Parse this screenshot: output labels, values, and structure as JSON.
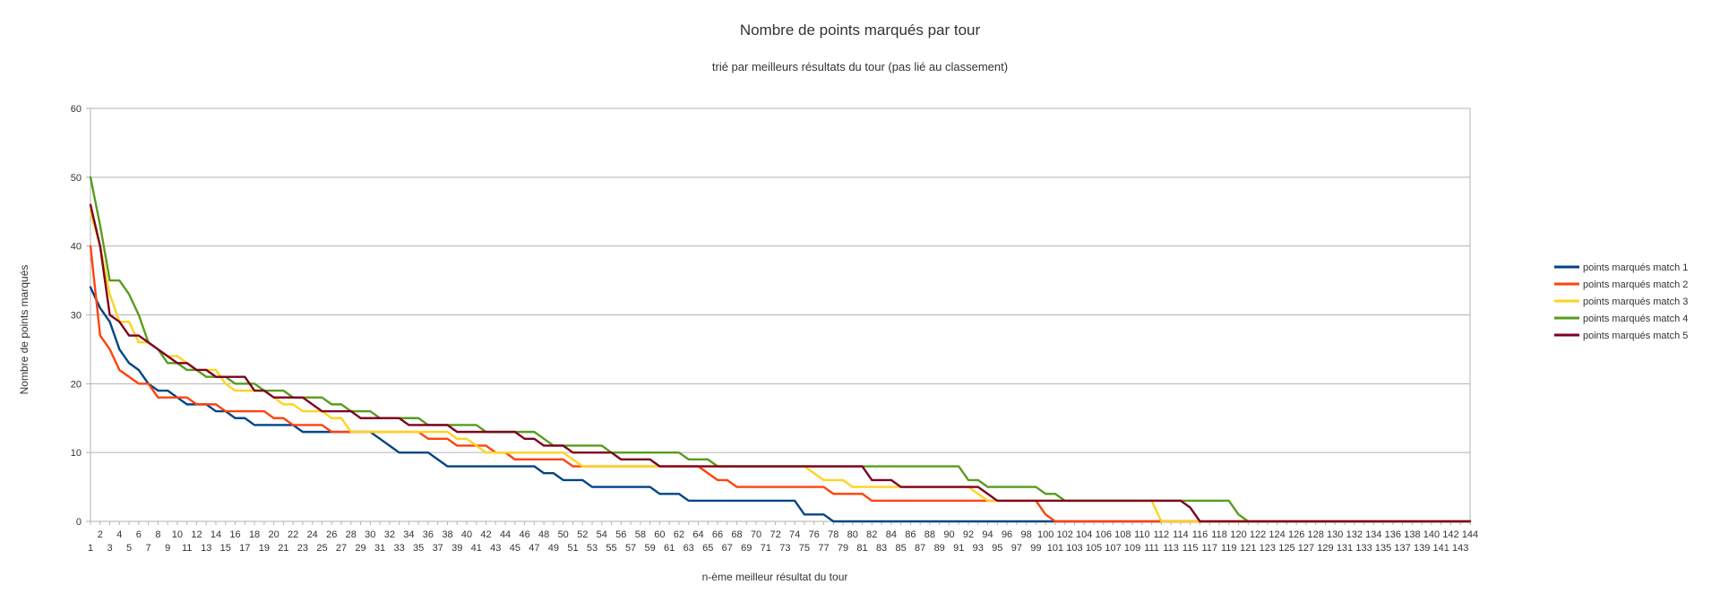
{
  "chart_data": {
    "type": "line",
    "title": "Nombre de points marqués par tour",
    "subtitle": "trié par meilleurs résultats du tour (pas lié au classement)",
    "xlabel": "n-ème meilleur résultat du tour",
    "ylabel": "Nombre de points marqués",
    "ylim": [
      0,
      60
    ],
    "yticks": [
      0,
      10,
      20,
      30,
      40,
      50,
      60
    ],
    "xlim": [
      1,
      144
    ],
    "x_tick_step": 1,
    "grid": "horizontal",
    "legend": "right",
    "series": [
      {
        "name": "points marqués match 1",
        "color": "#004586",
        "points": [
          [
            1,
            34
          ],
          [
            2,
            31
          ],
          [
            3,
            29
          ],
          [
            4,
            25
          ],
          [
            5,
            23
          ],
          [
            6,
            22
          ],
          [
            7,
            20
          ],
          [
            8,
            19
          ],
          [
            9,
            19
          ],
          [
            10,
            18
          ],
          [
            11,
            17
          ],
          [
            12,
            17
          ],
          [
            13,
            17
          ],
          [
            14,
            16
          ],
          [
            15,
            16
          ],
          [
            16,
            15
          ],
          [
            17,
            15
          ],
          [
            18,
            14
          ],
          [
            19,
            14
          ],
          [
            20,
            14
          ],
          [
            21,
            14
          ],
          [
            22,
            14
          ],
          [
            23,
            13
          ],
          [
            24,
            13
          ],
          [
            25,
            13
          ],
          [
            26,
            13
          ],
          [
            27,
            13
          ],
          [
            28,
            13
          ],
          [
            29,
            13
          ],
          [
            30,
            13
          ],
          [
            31,
            12
          ],
          [
            32,
            11
          ],
          [
            33,
            10
          ],
          [
            34,
            10
          ],
          [
            35,
            10
          ],
          [
            36,
            10
          ],
          [
            37,
            9
          ],
          [
            38,
            8
          ],
          [
            39,
            8
          ],
          [
            40,
            8
          ],
          [
            47,
            8
          ],
          [
            48,
            7
          ],
          [
            49,
            7
          ],
          [
            50,
            6
          ],
          [
            51,
            6
          ],
          [
            52,
            6
          ],
          [
            53,
            5
          ],
          [
            54,
            5
          ],
          [
            59,
            5
          ],
          [
            60,
            4
          ],
          [
            61,
            4
          ],
          [
            62,
            4
          ],
          [
            63,
            3
          ],
          [
            74,
            3
          ],
          [
            75,
            1
          ],
          [
            76,
            1
          ],
          [
            77,
            1
          ],
          [
            78,
            0
          ],
          [
            144,
            0
          ]
        ]
      },
      {
        "name": "points marqués match 2",
        "color": "#ff420e",
        "points": [
          [
            1,
            40
          ],
          [
            2,
            27
          ],
          [
            3,
            25
          ],
          [
            4,
            22
          ],
          [
            5,
            21
          ],
          [
            6,
            20
          ],
          [
            7,
            20
          ],
          [
            8,
            18
          ],
          [
            9,
            18
          ],
          [
            10,
            18
          ],
          [
            11,
            18
          ],
          [
            12,
            17
          ],
          [
            13,
            17
          ],
          [
            14,
            17
          ],
          [
            15,
            16
          ],
          [
            16,
            16
          ],
          [
            19,
            16
          ],
          [
            20,
            15
          ],
          [
            21,
            15
          ],
          [
            22,
            14
          ],
          [
            23,
            14
          ],
          [
            25,
            14
          ],
          [
            26,
            13
          ],
          [
            35,
            13
          ],
          [
            36,
            12
          ],
          [
            37,
            12
          ],
          [
            38,
            12
          ],
          [
            39,
            11
          ],
          [
            40,
            11
          ],
          [
            41,
            11
          ],
          [
            42,
            11
          ],
          [
            43,
            10
          ],
          [
            44,
            10
          ],
          [
            45,
            9
          ],
          [
            49,
            9
          ],
          [
            50,
            9
          ],
          [
            51,
            8
          ],
          [
            52,
            8
          ],
          [
            64,
            8
          ],
          [
            65,
            7
          ],
          [
            66,
            6
          ],
          [
            67,
            6
          ],
          [
            68,
            5
          ],
          [
            77,
            5
          ],
          [
            78,
            4
          ],
          [
            79,
            4
          ],
          [
            80,
            4
          ],
          [
            81,
            4
          ],
          [
            82,
            3
          ],
          [
            99,
            3
          ],
          [
            100,
            1
          ],
          [
            101,
            0
          ],
          [
            144,
            0
          ]
        ]
      },
      {
        "name": "points marqués match 3",
        "color": "#ffd320",
        "points": [
          [
            1,
            45
          ],
          [
            2,
            40
          ],
          [
            3,
            33
          ],
          [
            4,
            29
          ],
          [
            5,
            29
          ],
          [
            6,
            26
          ],
          [
            7,
            26
          ],
          [
            8,
            25
          ],
          [
            9,
            24
          ],
          [
            10,
            24
          ],
          [
            11,
            23
          ],
          [
            12,
            22
          ],
          [
            13,
            22
          ],
          [
            14,
            22
          ],
          [
            15,
            20
          ],
          [
            16,
            19
          ],
          [
            17,
            19
          ],
          [
            18,
            19
          ],
          [
            19,
            19
          ],
          [
            20,
            18
          ],
          [
            21,
            17
          ],
          [
            22,
            17
          ],
          [
            23,
            16
          ],
          [
            24,
            16
          ],
          [
            25,
            16
          ],
          [
            26,
            15
          ],
          [
            27,
            15
          ],
          [
            28,
            13
          ],
          [
            36,
            13
          ],
          [
            37,
            13
          ],
          [
            38,
            13
          ],
          [
            39,
            12
          ],
          [
            40,
            12
          ],
          [
            41,
            11
          ],
          [
            42,
            10
          ],
          [
            43,
            10
          ],
          [
            44,
            10
          ],
          [
            45,
            10
          ],
          [
            50,
            10
          ],
          [
            51,
            9
          ],
          [
            52,
            8
          ],
          [
            53,
            8
          ],
          [
            75,
            8
          ],
          [
            76,
            7
          ],
          [
            77,
            6
          ],
          [
            78,
            6
          ],
          [
            79,
            6
          ],
          [
            80,
            5
          ],
          [
            81,
            5
          ],
          [
            82,
            5
          ],
          [
            83,
            5
          ],
          [
            84,
            5
          ],
          [
            92,
            5
          ],
          [
            93,
            4
          ],
          [
            94,
            3
          ],
          [
            95,
            3
          ],
          [
            111,
            3
          ],
          [
            112,
            0
          ],
          [
            144,
            0
          ]
        ]
      },
      {
        "name": "points marqués match 4",
        "color": "#579d1c",
        "points": [
          [
            1,
            50
          ],
          [
            2,
            43
          ],
          [
            3,
            35
          ],
          [
            4,
            35
          ],
          [
            5,
            33
          ],
          [
            6,
            30
          ],
          [
            7,
            26
          ],
          [
            8,
            25
          ],
          [
            9,
            23
          ],
          [
            10,
            23
          ],
          [
            11,
            22
          ],
          [
            12,
            22
          ],
          [
            13,
            21
          ],
          [
            14,
            21
          ],
          [
            15,
            21
          ],
          [
            16,
            20
          ],
          [
            17,
            20
          ],
          [
            18,
            20
          ],
          [
            19,
            19
          ],
          [
            20,
            19
          ],
          [
            21,
            19
          ],
          [
            22,
            18
          ],
          [
            23,
            18
          ],
          [
            24,
            18
          ],
          [
            25,
            18
          ],
          [
            26,
            17
          ],
          [
            27,
            17
          ],
          [
            28,
            16
          ],
          [
            29,
            16
          ],
          [
            30,
            16
          ],
          [
            31,
            15
          ],
          [
            34,
            15
          ],
          [
            35,
            15
          ],
          [
            36,
            14
          ],
          [
            37,
            14
          ],
          [
            38,
            14
          ],
          [
            39,
            14
          ],
          [
            40,
            14
          ],
          [
            41,
            14
          ],
          [
            42,
            13
          ],
          [
            43,
            13
          ],
          [
            44,
            13
          ],
          [
            47,
            13
          ],
          [
            48,
            12
          ],
          [
            49,
            11
          ],
          [
            50,
            11
          ],
          [
            51,
            11
          ],
          [
            52,
            11
          ],
          [
            54,
            11
          ],
          [
            55,
            10
          ],
          [
            56,
            10
          ],
          [
            62,
            10
          ],
          [
            63,
            9
          ],
          [
            64,
            9
          ],
          [
            65,
            9
          ],
          [
            66,
            8
          ],
          [
            67,
            8
          ],
          [
            81,
            8
          ],
          [
            91,
            8
          ],
          [
            92,
            6
          ],
          [
            93,
            6
          ],
          [
            94,
            5
          ],
          [
            95,
            5
          ],
          [
            99,
            5
          ],
          [
            100,
            4
          ],
          [
            101,
            4
          ],
          [
            102,
            3
          ],
          [
            103,
            3
          ],
          [
            118,
            3
          ],
          [
            119,
            3
          ],
          [
            120,
            1
          ],
          [
            121,
            0
          ],
          [
            144,
            0
          ]
        ]
      },
      {
        "name": "points marqués match 5",
        "color": "#7e0021",
        "points": [
          [
            1,
            46
          ],
          [
            2,
            40
          ],
          [
            3,
            30
          ],
          [
            4,
            29
          ],
          [
            5,
            27
          ],
          [
            6,
            27
          ],
          [
            7,
            26
          ],
          [
            8,
            25
          ],
          [
            9,
            24
          ],
          [
            10,
            23
          ],
          [
            11,
            23
          ],
          [
            12,
            22
          ],
          [
            13,
            22
          ],
          [
            14,
            21
          ],
          [
            15,
            21
          ],
          [
            16,
            21
          ],
          [
            17,
            21
          ],
          [
            18,
            19
          ],
          [
            19,
            19
          ],
          [
            20,
            18
          ],
          [
            21,
            18
          ],
          [
            22,
            18
          ],
          [
            23,
            18
          ],
          [
            24,
            17
          ],
          [
            25,
            16
          ],
          [
            26,
            16
          ],
          [
            27,
            16
          ],
          [
            28,
            16
          ],
          [
            29,
            15
          ],
          [
            30,
            15
          ],
          [
            33,
            15
          ],
          [
            34,
            14
          ],
          [
            35,
            14
          ],
          [
            37,
            14
          ],
          [
            38,
            14
          ],
          [
            39,
            13
          ],
          [
            40,
            13
          ],
          [
            41,
            13
          ],
          [
            45,
            13
          ],
          [
            46,
            12
          ],
          [
            47,
            12
          ],
          [
            48,
            11
          ],
          [
            49,
            11
          ],
          [
            50,
            11
          ],
          [
            51,
            10
          ],
          [
            52,
            10
          ],
          [
            55,
            10
          ],
          [
            56,
            9
          ],
          [
            57,
            9
          ],
          [
            59,
            9
          ],
          [
            60,
            8
          ],
          [
            61,
            8
          ],
          [
            81,
            8
          ],
          [
            82,
            6
          ],
          [
            83,
            6
          ],
          [
            84,
            6
          ],
          [
            85,
            5
          ],
          [
            86,
            5
          ],
          [
            93,
            5
          ],
          [
            94,
            4
          ],
          [
            95,
            3
          ],
          [
            96,
            3
          ],
          [
            114,
            3
          ],
          [
            115,
            2
          ],
          [
            116,
            0
          ],
          [
            144,
            0
          ]
        ]
      }
    ]
  }
}
